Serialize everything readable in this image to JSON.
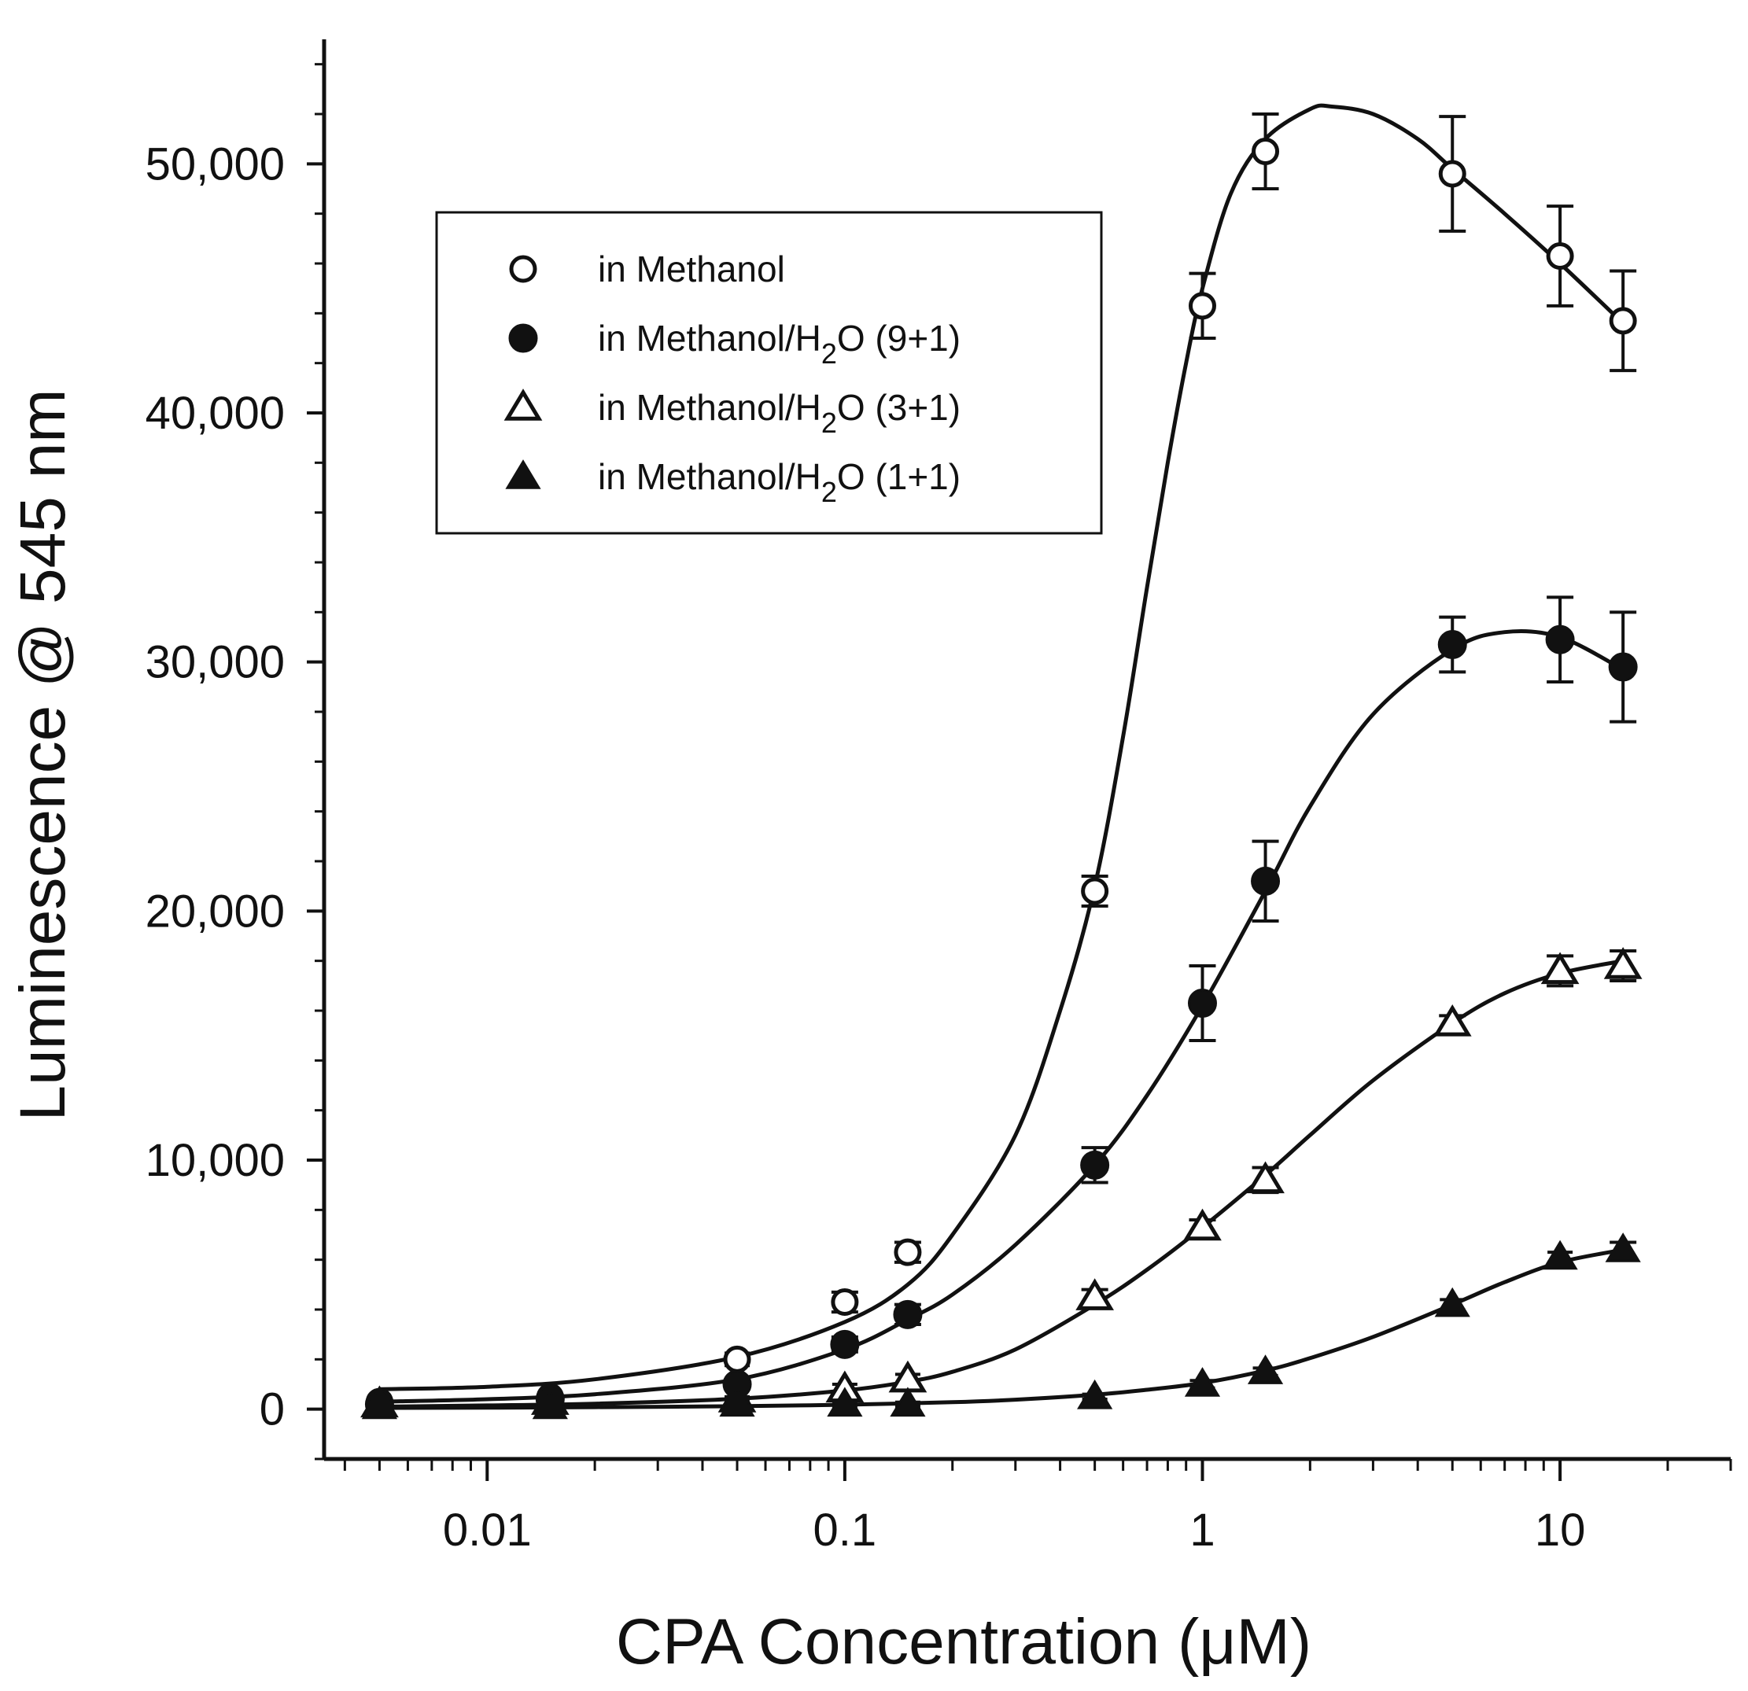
{
  "chart_data": {
    "type": "scatter",
    "title": "",
    "xlabel": "CPA Concentration (μM)",
    "ylabel": "Luminescence @ 545 nm",
    "xscale": "log",
    "xlim": [
      0.0035,
      30
    ],
    "ylim": [
      -2000,
      55000
    ],
    "xticks": [
      {
        "value": 0.01,
        "label": "0.01"
      },
      {
        "value": 0.1,
        "label": "0.1"
      },
      {
        "value": 1,
        "label": "1"
      },
      {
        "value": 10,
        "label": "10"
      }
    ],
    "yticks": [
      {
        "value": 0,
        "label": "0"
      },
      {
        "value": 10000,
        "label": "10,000"
      },
      {
        "value": 20000,
        "label": "20,000"
      },
      {
        "value": 30000,
        "label": "30,000"
      },
      {
        "value": 40000,
        "label": "40,000"
      },
      {
        "value": 50000,
        "label": "50,000"
      }
    ],
    "legend_position": "top-left",
    "series": [
      {
        "name": "in Methanol",
        "legend": {
          "prefix": "in Methanol",
          "subscript": "",
          "suffix": ""
        },
        "marker": "circle-open",
        "x": [
          0.005,
          0.015,
          0.05,
          0.1,
          0.15,
          0.5,
          1,
          1.5,
          5,
          10,
          15
        ],
        "y": [
          300,
          500,
          2000,
          4300,
          6300,
          20800,
          44300,
          50500,
          49600,
          46300,
          43700
        ],
        "err": [
          150,
          150,
          250,
          400,
          400,
          600,
          1300,
          1500,
          2300,
          2000,
          2000
        ],
        "fit_x": [
          0.005,
          0.01,
          0.02,
          0.05,
          0.1,
          0.15,
          0.2,
          0.3,
          0.4,
          0.5,
          0.6,
          0.7,
          0.8,
          0.9,
          1,
          1.2,
          1.5,
          2,
          2.3,
          3,
          4,
          5,
          7,
          10,
          15
        ],
        "fit_y": [
          800,
          900,
          1200,
          2100,
          3500,
          5000,
          7000,
          11000,
          16000,
          21000,
          27000,
          33000,
          38000,
          42000,
          45000,
          48800,
          51000,
          52200,
          52300,
          52000,
          51000,
          49800,
          48000,
          46000,
          43600
        ]
      },
      {
        "name": "in Methanol/H2O (9+1)",
        "legend": {
          "prefix": "in Methanol/H",
          "subscript": "2",
          "suffix": "O (9+1)"
        },
        "marker": "circle-filled",
        "x": [
          0.005,
          0.015,
          0.05,
          0.1,
          0.15,
          0.5,
          1,
          1.5,
          5,
          10,
          15
        ],
        "y": [
          200,
          400,
          1000,
          2600,
          3800,
          9800,
          16300,
          21200,
          30700,
          30900,
          29800
        ],
        "err": [
          150,
          150,
          200,
          300,
          400,
          700,
          1500,
          1600,
          1100,
          1700,
          2200
        ],
        "fit_x": [
          0.005,
          0.01,
          0.02,
          0.05,
          0.1,
          0.15,
          0.2,
          0.3,
          0.5,
          0.7,
          1,
          1.5,
          2,
          3,
          5,
          7,
          10,
          15
        ],
        "fit_y": [
          300,
          400,
          600,
          1200,
          2400,
          3600,
          4600,
          6600,
          9800,
          12600,
          16200,
          20800,
          24200,
          27900,
          30500,
          31200,
          31000,
          29700
        ]
      },
      {
        "name": "in Methanol/H2O (3+1)",
        "legend": {
          "prefix": "in Methanol/H",
          "subscript": "2",
          "suffix": "O (3+1)"
        },
        "marker": "triangle-open",
        "x": [
          0.005,
          0.015,
          0.05,
          0.1,
          0.15,
          0.5,
          1,
          1.5,
          5,
          10,
          15
        ],
        "y": [
          200,
          300,
          400,
          800,
          1200,
          4500,
          7300,
          9200,
          15500,
          17600,
          17800
        ],
        "err": [
          100,
          100,
          100,
          200,
          200,
          300,
          300,
          500,
          300,
          600,
          600
        ],
        "fit_x": [
          0.005,
          0.01,
          0.02,
          0.05,
          0.1,
          0.15,
          0.2,
          0.3,
          0.5,
          0.7,
          1,
          1.5,
          2,
          3,
          5,
          7,
          10,
          15
        ],
        "fit_y": [
          100,
          150,
          220,
          420,
          750,
          1100,
          1500,
          2400,
          4200,
          5600,
          7300,
          9400,
          11000,
          13200,
          15500,
          16700,
          17500,
          18000
        ]
      },
      {
        "name": "in Methanol/H2O (1+1)",
        "legend": {
          "prefix": "in Methanol/H",
          "subscript": "2",
          "suffix": "O (1+1)"
        },
        "marker": "triangle-filled",
        "x": [
          0.005,
          0.015,
          0.05,
          0.1,
          0.15,
          0.5,
          1,
          1.5,
          5,
          10,
          15
        ],
        "y": [
          100,
          100,
          200,
          200,
          200,
          500,
          1000,
          1500,
          4200,
          6100,
          6400
        ],
        "err": [
          80,
          80,
          80,
          80,
          80,
          100,
          150,
          150,
          200,
          200,
          300
        ],
        "fit_x": [
          0.005,
          0.01,
          0.02,
          0.05,
          0.1,
          0.2,
          0.3,
          0.5,
          0.7,
          1,
          1.5,
          2,
          3,
          5,
          7,
          10,
          15
        ],
        "fit_y": [
          50,
          60,
          80,
          120,
          180,
          280,
          380,
          580,
          780,
          1050,
          1550,
          2050,
          2900,
          4200,
          5100,
          5900,
          6400
        ]
      }
    ]
  }
}
